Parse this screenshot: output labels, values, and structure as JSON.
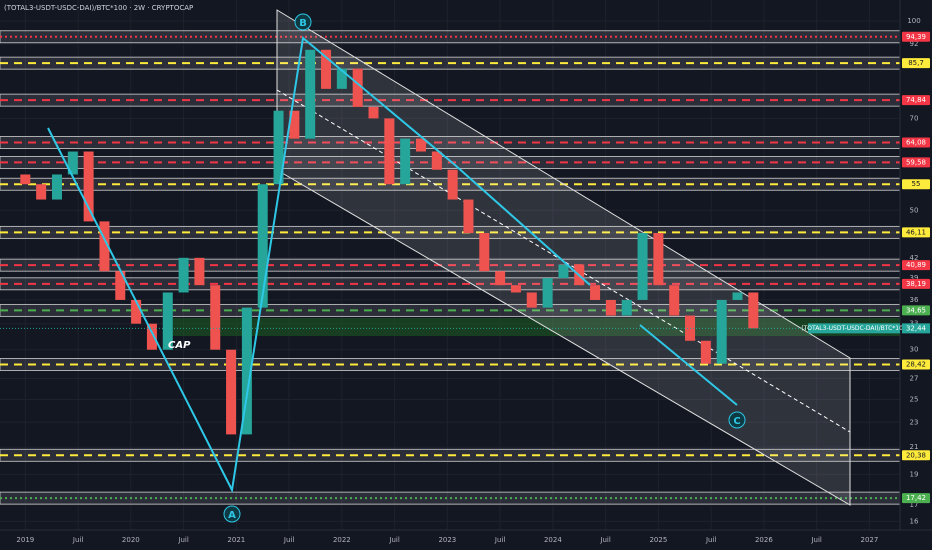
{
  "chart_data": {
    "type": "candlestick",
    "title": "(TOTAL3-USDT-USDC-DAI)/BTC*100 · 2W · CRYPTOCAP",
    "log_scale": true,
    "x": [
      2019.0,
      2019.15,
      2019.3,
      2019.45,
      2019.6,
      2019.75,
      2019.9,
      2020.05,
      2020.2,
      2020.35,
      2020.5,
      2020.65,
      2020.8,
      2020.95,
      2021.1,
      2021.25,
      2021.4,
      2021.55,
      2021.7,
      2021.85,
      2022.0,
      2022.15,
      2022.3,
      2022.45,
      2022.6,
      2022.75,
      2022.9,
      2023.05,
      2023.2,
      2023.35,
      2023.5,
      2023.65,
      2023.8,
      2023.95,
      2024.1,
      2024.25,
      2024.4,
      2024.55,
      2024.7,
      2024.85,
      2025.0,
      2025.15,
      2025.3,
      2025.45,
      2025.6,
      2025.75,
      2025.9
    ],
    "open": [
      57,
      55,
      52,
      57,
      62,
      48,
      40,
      36,
      33,
      30,
      37,
      42,
      38,
      30,
      22,
      35,
      55,
      72,
      65,
      90,
      78,
      84,
      73,
      70,
      55,
      65,
      62,
      58,
      52,
      46,
      40,
      38,
      37,
      35,
      39,
      41,
      38,
      36,
      34,
      36,
      46,
      38,
      34,
      31,
      28.5,
      36,
      37
    ],
    "close": [
      55,
      52,
      57,
      62,
      48,
      40,
      36,
      33,
      30,
      37,
      42,
      38,
      30,
      22,
      35,
      55,
      72,
      65,
      90,
      78,
      84,
      73,
      70,
      55,
      65,
      62,
      58,
      52,
      46,
      40,
      38,
      37,
      35,
      39,
      41,
      38,
      36,
      34,
      36,
      46,
      38,
      34,
      31,
      28.5,
      36,
      37,
      32.44
    ],
    "up_color": "#26a69a",
    "down_color": "#ef5350",
    "xlim": [
      2018.76,
      2027.29
    ],
    "xticks": [
      2019,
      {
        "value": 2019.5,
        "label": "Juil"
      },
      2020,
      {
        "value": 2020.5,
        "label": "Juil"
      },
      2021,
      {
        "value": 2021.5,
        "label": "Juil"
      },
      2022,
      {
        "value": 2022.5,
        "label": "Juil"
      },
      2023,
      {
        "value": 2023.5,
        "label": "Juil"
      },
      2024,
      {
        "value": 2024.5,
        "label": "Juil"
      },
      2025,
      {
        "value": 2025.5,
        "label": "Juil"
      },
      2026,
      {
        "value": 2026.5,
        "label": "Juil"
      },
      2027
    ],
    "ylim": [
      15.5,
      108
    ],
    "yticks": [
      100,
      92,
      70,
      50,
      46,
      42,
      39,
      36,
      33,
      30,
      27,
      25,
      23,
      21,
      19,
      17,
      16
    ],
    "levels": [
      {
        "value": 94.39,
        "label": "94,39",
        "color": "#f23645",
        "style": "dotted"
      },
      {
        "value": 85.7,
        "label": "85,7",
        "color": "#ffeb3b",
        "style": "dashed"
      },
      {
        "value": 74.84,
        "label": "74,84",
        "color": "#f23645",
        "style": "dashed"
      },
      {
        "value": 64.08,
        "label": "64,08",
        "color": "#f23645",
        "style": "dashed"
      },
      {
        "value": 59.58,
        "label": "59,58",
        "color": "#f23645",
        "style": "dashed"
      },
      {
        "value": 55,
        "label": "55",
        "color": "#ffeb3b",
        "style": "dashed"
      },
      {
        "value": 46.11,
        "label": "46,11",
        "color": "#ffeb3b",
        "style": "dashed"
      },
      {
        "value": 40.89,
        "label": "40,89",
        "color": "#f23645",
        "style": "dashed"
      },
      {
        "value": 38.19,
        "label": "38,19",
        "color": "#f23645",
        "style": "dashed"
      },
      {
        "value": 34.65,
        "label": "34,65",
        "color": "#4caf50",
        "style": "dashed"
      },
      {
        "value": 28.42,
        "label": "28,42",
        "color": "#ffeb3b",
        "style": "dashed"
      },
      {
        "value": 20.38,
        "label": "20,38",
        "color": "#ffeb3b",
        "style": "dashed"
      },
      {
        "value": 17.42,
        "label": "17,42",
        "color": "#4caf50",
        "style": "dotted"
      }
    ],
    "last_price": {
      "name": "(TOTAL3-USDT-USDC-DAI)/BTC*100",
      "value": 32.44,
      "label": "32,44"
    },
    "annotations": [
      "A",
      "B",
      "C",
      "CAP"
    ]
  }
}
